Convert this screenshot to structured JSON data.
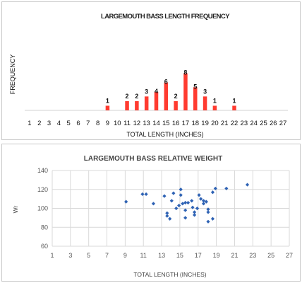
{
  "chart_data": [
    {
      "type": "bar",
      "title": "LARGEMOUTH BASS LENGTH FREQUENCY",
      "xlabel": "TOTAL LENGTH (INCHES)",
      "ylabel": "FREQUENCY",
      "categories": [
        "1",
        "2",
        "3",
        "4",
        "5",
        "6",
        "7",
        "8",
        "9",
        "10",
        "11",
        "12",
        "13",
        "14",
        "15",
        "16",
        "17",
        "18",
        "19",
        "20",
        "21",
        "22",
        "23",
        "24",
        "25",
        "26",
        "27"
      ],
      "values": [
        0,
        0,
        0,
        0,
        0,
        0,
        0,
        0,
        1,
        0,
        2,
        2,
        3,
        4,
        6,
        2,
        8,
        5,
        3,
        1,
        0,
        1,
        0,
        0,
        0,
        0,
        0
      ],
      "data_labels": [
        "",
        "",
        "",
        "",
        "",
        "",
        "",
        "",
        "1",
        "",
        "2",
        "2",
        "3",
        "4",
        "6",
        "2",
        "8",
        "5",
        "3",
        "1",
        "",
        "1",
        "",
        "",
        "",
        "",
        ""
      ],
      "ylim": [
        0,
        20
      ],
      "grid": false,
      "color": "#ff3b30"
    },
    {
      "type": "scatter",
      "title": "LARGEMOUTH BASS RELATIVE WEIGHT",
      "xlabel": "TOTAL LENGTH (INCHES)",
      "ylabel": "Wr",
      "xlim": [
        1,
        27
      ],
      "ylim": [
        60,
        140
      ],
      "xticks": [
        1,
        3,
        5,
        7,
        9,
        11,
        13,
        15,
        17,
        19,
        21,
        23,
        25,
        27
      ],
      "yticks": [
        60,
        80,
        100,
        120,
        140
      ],
      "grid": true,
      "color": "#2e62b4",
      "points": [
        [
          9.1,
          107
        ],
        [
          10.9,
          115
        ],
        [
          11.3,
          115
        ],
        [
          12.1,
          105
        ],
        [
          13.3,
          113
        ],
        [
          13.6,
          95
        ],
        [
          13.6,
          92
        ],
        [
          13.9,
          89
        ],
        [
          14.1,
          108
        ],
        [
          14.3,
          116
        ],
        [
          14.6,
          100
        ],
        [
          14.9,
          103
        ],
        [
          15.1,
          120
        ],
        [
          15.1,
          114
        ],
        [
          15.3,
          105
        ],
        [
          15.6,
          106
        ],
        [
          15.6,
          90
        ],
        [
          15.6,
          98
        ],
        [
          15.9,
          106
        ],
        [
          16.3,
          108
        ],
        [
          16.4,
          101
        ],
        [
          16.6,
          96
        ],
        [
          16.6,
          93
        ],
        [
          16.9,
          100
        ],
        [
          17.1,
          114
        ],
        [
          17.3,
          110
        ],
        [
          17.6,
          105
        ],
        [
          17.6,
          108
        ],
        [
          17.9,
          107
        ],
        [
          18.1,
          99
        ],
        [
          18.1,
          96
        ],
        [
          18.1,
          86
        ],
        [
          18.6,
          89
        ],
        [
          18.6,
          117
        ],
        [
          18.9,
          121
        ],
        [
          20.1,
          121
        ],
        [
          22.4,
          125
        ]
      ]
    }
  ]
}
